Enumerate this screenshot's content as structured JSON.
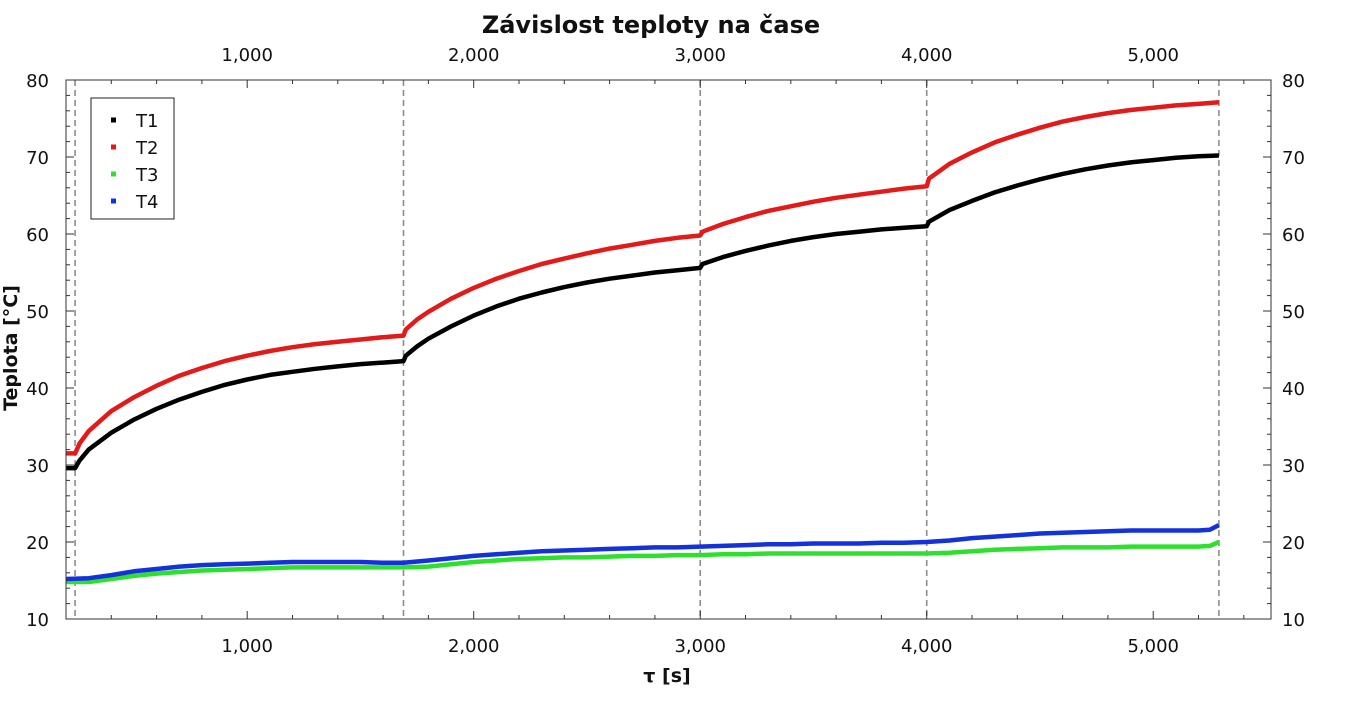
{
  "chart_data": {
    "type": "line",
    "title": "Závislost teploty na čase",
    "xlabel": "τ [s]",
    "ylabel": "Teplota [°C]",
    "xlim": [
      200,
      5520
    ],
    "ylim": [
      10,
      80
    ],
    "x_ticks": [
      1000,
      2000,
      3000,
      4000,
      5000
    ],
    "x_tick_labels": [
      "1,000",
      "2,000",
      "3,000",
      "4,000",
      "5,000"
    ],
    "y_ticks": [
      10,
      20,
      30,
      40,
      50,
      60,
      70,
      80
    ],
    "y_tick_labels": [
      "10",
      "20",
      "30",
      "40",
      "50",
      "60",
      "70",
      "80"
    ],
    "grid": false,
    "legend_position": "top-left",
    "vertical_markers": [
      240,
      1690,
      3000,
      4000,
      5290
    ],
    "series": [
      {
        "name": "T1",
        "color": "#000000",
        "points": [
          [
            200,
            29.6
          ],
          [
            240,
            29.6
          ],
          [
            260,
            30.6
          ],
          [
            300,
            32.0
          ],
          [
            400,
            34.2
          ],
          [
            500,
            35.9
          ],
          [
            600,
            37.3
          ],
          [
            700,
            38.5
          ],
          [
            800,
            39.5
          ],
          [
            900,
            40.4
          ],
          [
            1000,
            41.1
          ],
          [
            1100,
            41.7
          ],
          [
            1200,
            42.1
          ],
          [
            1300,
            42.5
          ],
          [
            1400,
            42.8
          ],
          [
            1500,
            43.1
          ],
          [
            1600,
            43.3
          ],
          [
            1690,
            43.5
          ],
          [
            1700,
            44.2
          ],
          [
            1750,
            45.4
          ],
          [
            1800,
            46.4
          ],
          [
            1900,
            48.0
          ],
          [
            2000,
            49.4
          ],
          [
            2100,
            50.6
          ],
          [
            2200,
            51.6
          ],
          [
            2300,
            52.4
          ],
          [
            2400,
            53.1
          ],
          [
            2500,
            53.7
          ],
          [
            2600,
            54.2
          ],
          [
            2700,
            54.6
          ],
          [
            2800,
            55.0
          ],
          [
            2900,
            55.3
          ],
          [
            3000,
            55.6
          ],
          [
            3010,
            56.1
          ],
          [
            3100,
            57.0
          ],
          [
            3200,
            57.8
          ],
          [
            3300,
            58.5
          ],
          [
            3400,
            59.1
          ],
          [
            3500,
            59.6
          ],
          [
            3600,
            60.0
          ],
          [
            3700,
            60.3
          ],
          [
            3800,
            60.6
          ],
          [
            3900,
            60.8
          ],
          [
            4000,
            61.0
          ],
          [
            4010,
            61.6
          ],
          [
            4100,
            63.1
          ],
          [
            4200,
            64.3
          ],
          [
            4300,
            65.4
          ],
          [
            4400,
            66.3
          ],
          [
            4500,
            67.1
          ],
          [
            4600,
            67.8
          ],
          [
            4700,
            68.4
          ],
          [
            4800,
            68.9
          ],
          [
            4900,
            69.3
          ],
          [
            5000,
            69.6
          ],
          [
            5100,
            69.9
          ],
          [
            5200,
            70.1
          ],
          [
            5290,
            70.2
          ]
        ]
      },
      {
        "name": "T2",
        "color": "#e31a1a",
        "points": [
          [
            200,
            31.5
          ],
          [
            240,
            31.5
          ],
          [
            260,
            32.8
          ],
          [
            300,
            34.4
          ],
          [
            400,
            37.0
          ],
          [
            500,
            38.8
          ],
          [
            600,
            40.3
          ],
          [
            700,
            41.6
          ],
          [
            800,
            42.6
          ],
          [
            900,
            43.5
          ],
          [
            1000,
            44.2
          ],
          [
            1100,
            44.8
          ],
          [
            1200,
            45.3
          ],
          [
            1300,
            45.7
          ],
          [
            1400,
            46.0
          ],
          [
            1500,
            46.3
          ],
          [
            1600,
            46.6
          ],
          [
            1690,
            46.8
          ],
          [
            1700,
            47.6
          ],
          [
            1750,
            48.9
          ],
          [
            1800,
            49.9
          ],
          [
            1900,
            51.6
          ],
          [
            2000,
            53.0
          ],
          [
            2100,
            54.2
          ],
          [
            2200,
            55.2
          ],
          [
            2300,
            56.1
          ],
          [
            2400,
            56.8
          ],
          [
            2500,
            57.5
          ],
          [
            2600,
            58.1
          ],
          [
            2700,
            58.6
          ],
          [
            2800,
            59.1
          ],
          [
            2900,
            59.5
          ],
          [
            3000,
            59.8
          ],
          [
            3010,
            60.3
          ],
          [
            3100,
            61.3
          ],
          [
            3200,
            62.2
          ],
          [
            3300,
            63.0
          ],
          [
            3400,
            63.6
          ],
          [
            3500,
            64.2
          ],
          [
            3600,
            64.7
          ],
          [
            3700,
            65.1
          ],
          [
            3800,
            65.5
          ],
          [
            3900,
            65.9
          ],
          [
            4000,
            66.2
          ],
          [
            4010,
            67.2
          ],
          [
            4100,
            69.1
          ],
          [
            4200,
            70.6
          ],
          [
            4300,
            71.9
          ],
          [
            4400,
            72.9
          ],
          [
            4500,
            73.8
          ],
          [
            4600,
            74.6
          ],
          [
            4700,
            75.2
          ],
          [
            4800,
            75.7
          ],
          [
            4900,
            76.1
          ],
          [
            5000,
            76.4
          ],
          [
            5100,
            76.7
          ],
          [
            5200,
            76.9
          ],
          [
            5290,
            77.1
          ]
        ]
      },
      {
        "name": "T3",
        "color": "#2ee02e",
        "points": [
          [
            200,
            14.8
          ],
          [
            300,
            14.8
          ],
          [
            400,
            15.2
          ],
          [
            500,
            15.6
          ],
          [
            600,
            15.9
          ],
          [
            700,
            16.1
          ],
          [
            800,
            16.3
          ],
          [
            900,
            16.4
          ],
          [
            1000,
            16.5
          ],
          [
            1100,
            16.6
          ],
          [
            1200,
            16.7
          ],
          [
            1300,
            16.7
          ],
          [
            1400,
            16.7
          ],
          [
            1500,
            16.7
          ],
          [
            1600,
            16.7
          ],
          [
            1690,
            16.7
          ],
          [
            1800,
            16.8
          ],
          [
            1900,
            17.1
          ],
          [
            2000,
            17.4
          ],
          [
            2100,
            17.6
          ],
          [
            2200,
            17.8
          ],
          [
            2300,
            17.9
          ],
          [
            2400,
            18.0
          ],
          [
            2500,
            18.0
          ],
          [
            2600,
            18.1
          ],
          [
            2700,
            18.2
          ],
          [
            2800,
            18.2
          ],
          [
            2900,
            18.3
          ],
          [
            3000,
            18.3
          ],
          [
            3100,
            18.4
          ],
          [
            3200,
            18.4
          ],
          [
            3300,
            18.5
          ],
          [
            3400,
            18.5
          ],
          [
            3500,
            18.5
          ],
          [
            3600,
            18.5
          ],
          [
            3700,
            18.5
          ],
          [
            3800,
            18.5
          ],
          [
            3900,
            18.5
          ],
          [
            4000,
            18.5
          ],
          [
            4100,
            18.6
          ],
          [
            4200,
            18.8
          ],
          [
            4300,
            19.0
          ],
          [
            4400,
            19.1
          ],
          [
            4500,
            19.2
          ],
          [
            4600,
            19.3
          ],
          [
            4700,
            19.3
          ],
          [
            4800,
            19.3
          ],
          [
            4900,
            19.4
          ],
          [
            5000,
            19.4
          ],
          [
            5100,
            19.4
          ],
          [
            5200,
            19.4
          ],
          [
            5250,
            19.5
          ],
          [
            5290,
            20.0
          ]
        ]
      },
      {
        "name": "T4",
        "color": "#1432d9",
        "points": [
          [
            200,
            15.2
          ],
          [
            300,
            15.3
          ],
          [
            400,
            15.7
          ],
          [
            500,
            16.2
          ],
          [
            600,
            16.5
          ],
          [
            700,
            16.8
          ],
          [
            800,
            17.0
          ],
          [
            900,
            17.1
          ],
          [
            1000,
            17.2
          ],
          [
            1100,
            17.3
          ],
          [
            1200,
            17.4
          ],
          [
            1300,
            17.4
          ],
          [
            1400,
            17.4
          ],
          [
            1500,
            17.4
          ],
          [
            1600,
            17.3
          ],
          [
            1690,
            17.3
          ],
          [
            1800,
            17.6
          ],
          [
            1900,
            17.9
          ],
          [
            2000,
            18.2
          ],
          [
            2100,
            18.4
          ],
          [
            2200,
            18.6
          ],
          [
            2300,
            18.8
          ],
          [
            2400,
            18.9
          ],
          [
            2500,
            19.0
          ],
          [
            2600,
            19.1
          ],
          [
            2700,
            19.2
          ],
          [
            2800,
            19.3
          ],
          [
            2900,
            19.3
          ],
          [
            3000,
            19.4
          ],
          [
            3100,
            19.5
          ],
          [
            3200,
            19.6
          ],
          [
            3300,
            19.7
          ],
          [
            3400,
            19.7
          ],
          [
            3500,
            19.8
          ],
          [
            3600,
            19.8
          ],
          [
            3700,
            19.8
          ],
          [
            3800,
            19.9
          ],
          [
            3900,
            19.9
          ],
          [
            4000,
            20.0
          ],
          [
            4100,
            20.2
          ],
          [
            4200,
            20.5
          ],
          [
            4300,
            20.7
          ],
          [
            4400,
            20.9
          ],
          [
            4500,
            21.1
          ],
          [
            4600,
            21.2
          ],
          [
            4700,
            21.3
          ],
          [
            4800,
            21.4
          ],
          [
            4900,
            21.5
          ],
          [
            5000,
            21.5
          ],
          [
            5100,
            21.5
          ],
          [
            5200,
            21.5
          ],
          [
            5250,
            21.6
          ],
          [
            5290,
            22.2
          ]
        ]
      }
    ]
  }
}
